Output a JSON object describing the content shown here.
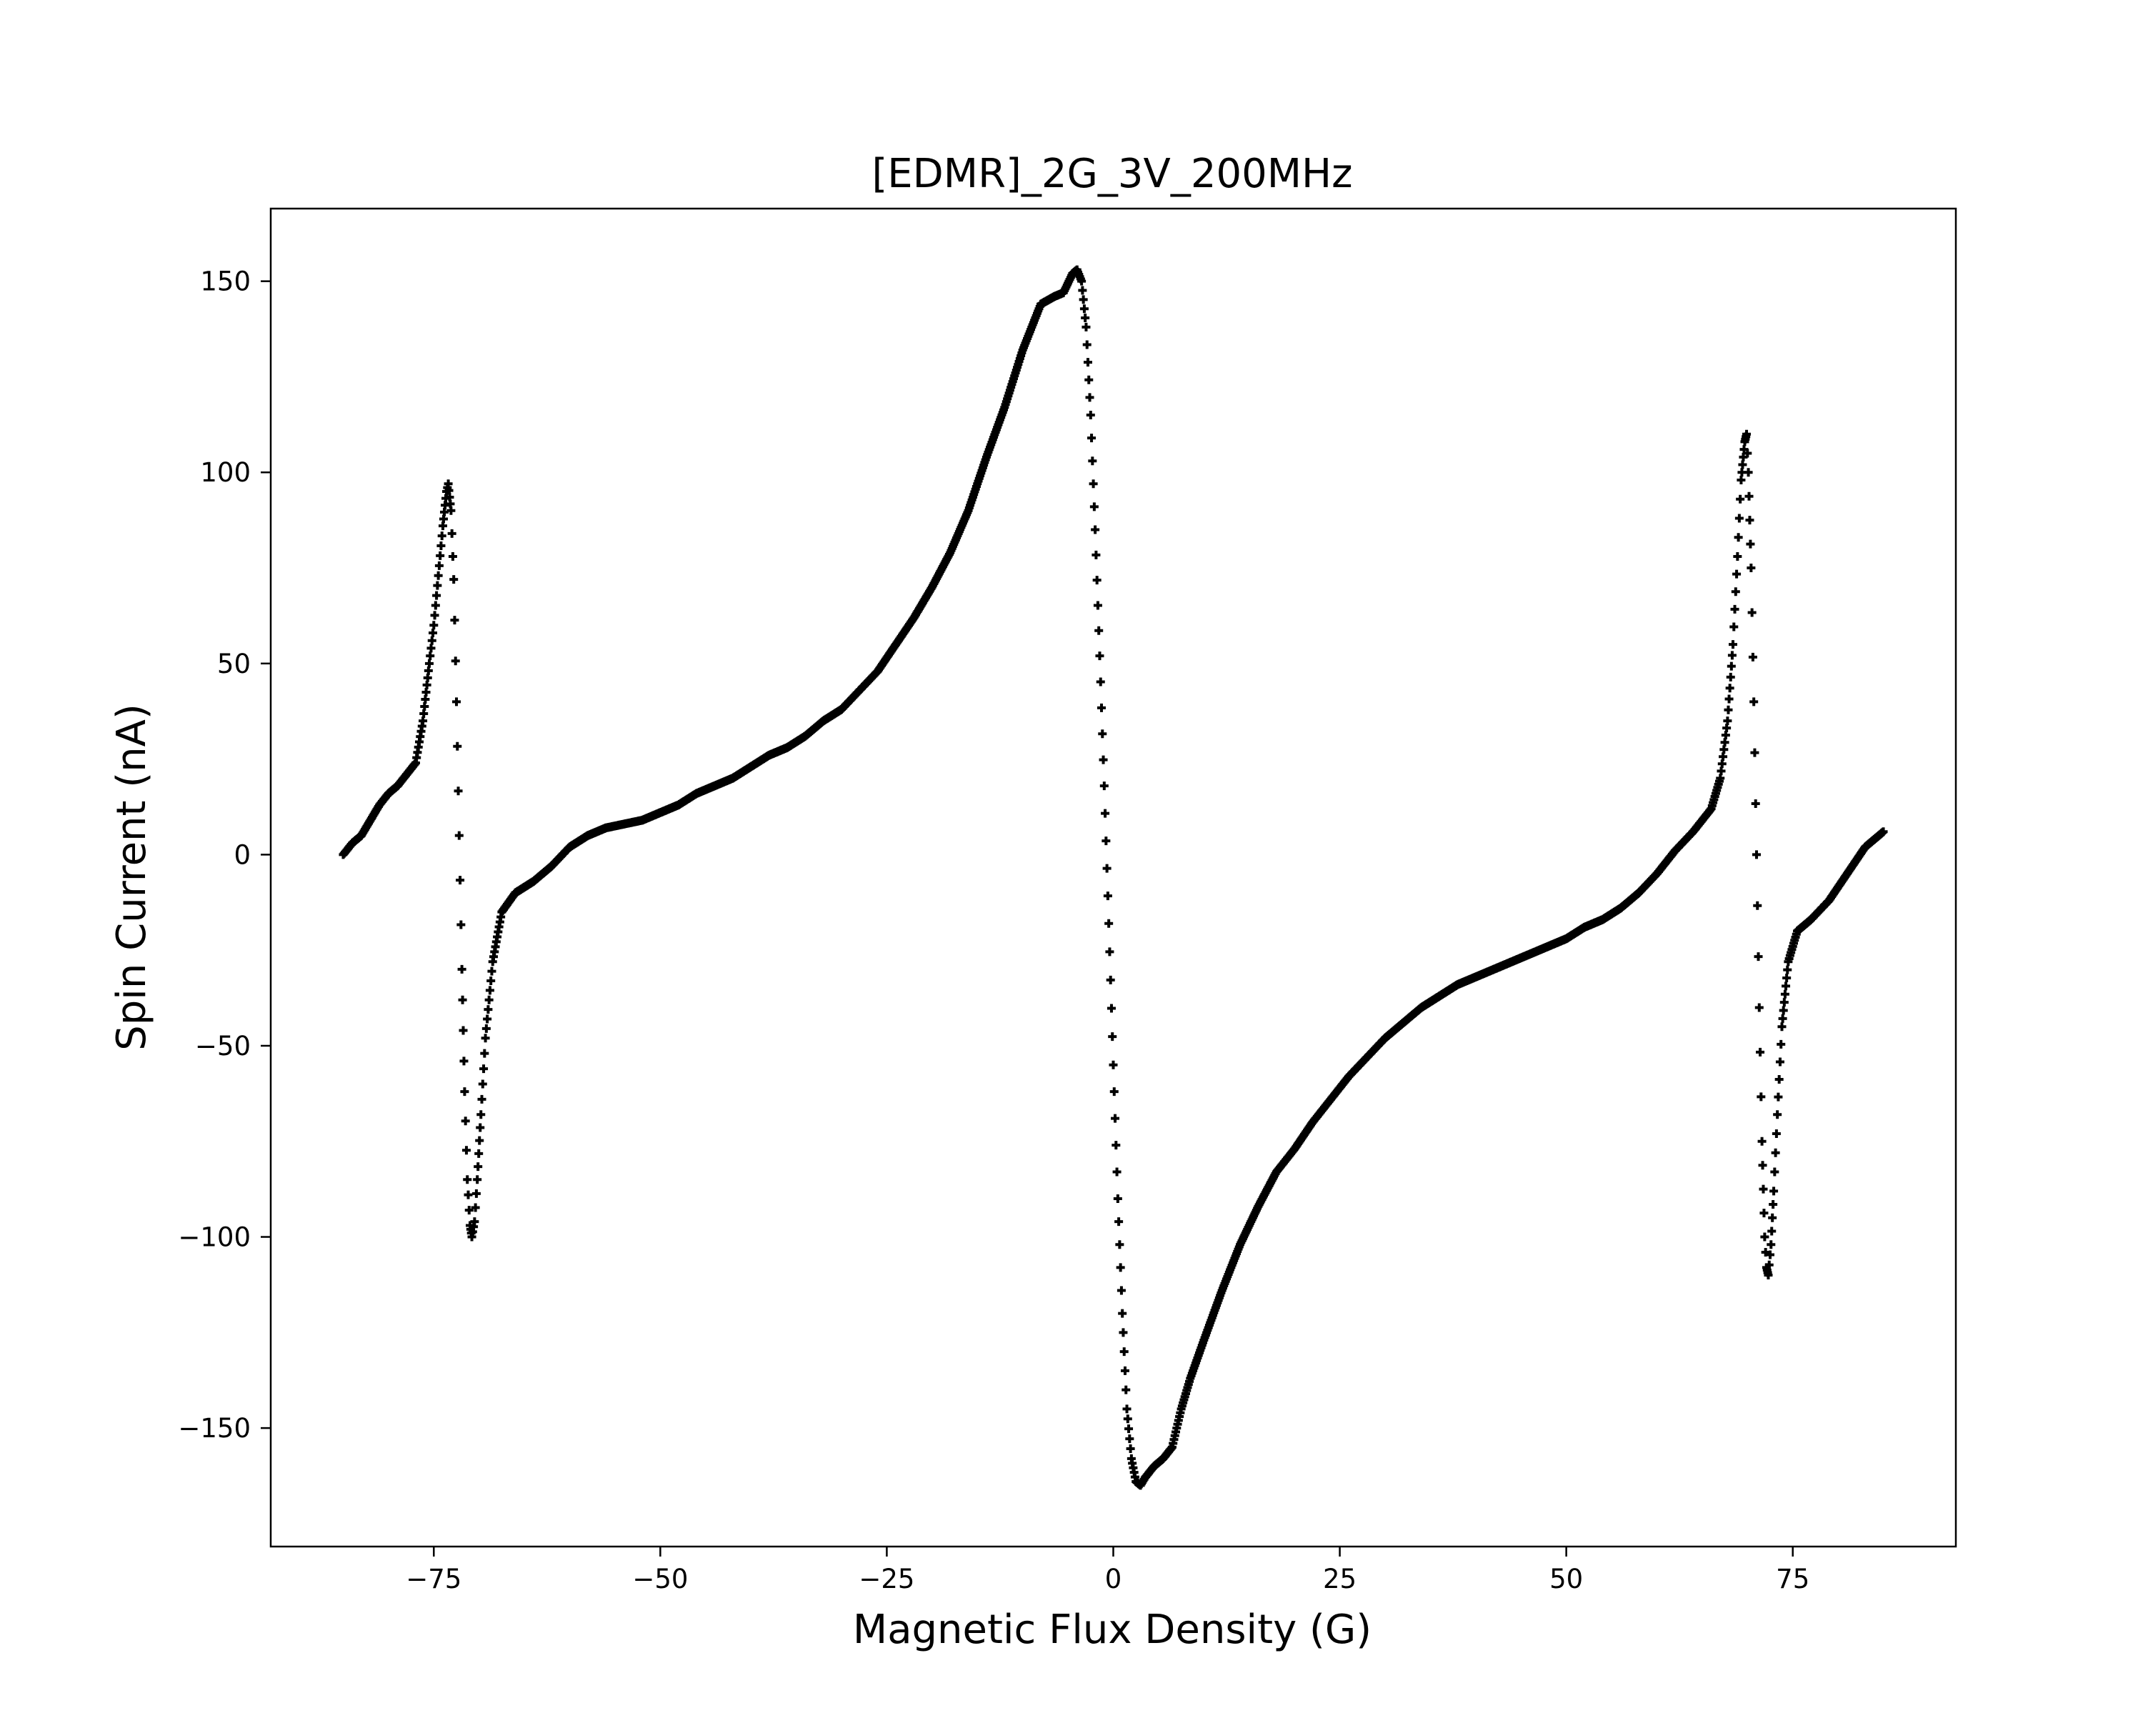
{
  "chart_data": {
    "type": "scatter",
    "title": "[EDMR]_2G_3V_200MHz",
    "xlabel": "Magnetic Flux Density (G)",
    "ylabel": "Spin Current (nA)",
    "xlim": [
      -93,
      93
    ],
    "ylim": [
      -181,
      169
    ],
    "xticks": [
      -75,
      -50,
      -25,
      0,
      25,
      50,
      75
    ],
    "yticks": [
      -150,
      -100,
      -50,
      0,
      50,
      100,
      150
    ],
    "xtick_labels": [
      "−75",
      "−50",
      "−25",
      "0",
      "25",
      "50",
      "75"
    ],
    "ytick_labels": [
      "−150",
      "−100",
      "−50",
      "0",
      "50",
      "100",
      "150"
    ],
    "grid": false,
    "marker": "plus",
    "marker_color": "#000000",
    "series": [
      {
        "x_range": [
          -85,
          85
        ],
        "points": [
          [
            -85,
            0
          ],
          [
            -84,
            3
          ],
          [
            -83,
            5
          ],
          [
            -82,
            9
          ],
          [
            -81,
            13
          ],
          [
            -80,
            16
          ],
          [
            -79,
            18
          ],
          [
            -78,
            21
          ],
          [
            -77,
            24
          ],
          [
            -76.2,
            35
          ],
          [
            -75.5,
            50
          ],
          [
            -75,
            60
          ],
          [
            -74.5,
            73
          ],
          [
            -74,
            86
          ],
          [
            -73.6,
            95
          ],
          [
            -73.4,
            97
          ],
          [
            -73.1,
            90
          ],
          [
            -72.8,
            72
          ],
          [
            -72.5,
            40
          ],
          [
            -72.2,
            5
          ],
          [
            -71.9,
            -30
          ],
          [
            -71.6,
            -62
          ],
          [
            -71.3,
            -85
          ],
          [
            -71,
            -97
          ],
          [
            -70.8,
            -100
          ],
          [
            -70.5,
            -96
          ],
          [
            -70.2,
            -85
          ],
          [
            -69.8,
            -68
          ],
          [
            -69.3,
            -48
          ],
          [
            -68.5,
            -28
          ],
          [
            -67.5,
            -15
          ],
          [
            -66,
            -10
          ],
          [
            -64,
            -7
          ],
          [
            -62,
            -3
          ],
          [
            -60,
            2
          ],
          [
            -58,
            5
          ],
          [
            -56,
            7
          ],
          [
            -54,
            8
          ],
          [
            -52,
            9
          ],
          [
            -50,
            11
          ],
          [
            -48,
            13
          ],
          [
            -46,
            16
          ],
          [
            -44,
            18
          ],
          [
            -42,
            20
          ],
          [
            -40,
            23
          ],
          [
            -38,
            26
          ],
          [
            -36,
            28
          ],
          [
            -34,
            31
          ],
          [
            -32,
            35
          ],
          [
            -30,
            38
          ],
          [
            -28,
            43
          ],
          [
            -26,
            48
          ],
          [
            -24,
            55
          ],
          [
            -22,
            62
          ],
          [
            -20,
            70
          ],
          [
            -18,
            79
          ],
          [
            -16,
            90
          ],
          [
            -14,
            104
          ],
          [
            -12,
            117
          ],
          [
            -10,
            132
          ],
          [
            -8,
            144
          ],
          [
            -6.5,
            146
          ],
          [
            -5.5,
            147
          ],
          [
            -4.5,
            152
          ],
          [
            -4,
            153
          ],
          [
            -3.5,
            150
          ],
          [
            -3,
            138
          ],
          [
            -2.5,
            115
          ],
          [
            -2,
            85
          ],
          [
            -1.5,
            52
          ],
          [
            -1,
            18
          ],
          [
            -0.5,
            -18
          ],
          [
            0,
            -55
          ],
          [
            0.5,
            -90
          ],
          [
            1,
            -120
          ],
          [
            1.5,
            -145
          ],
          [
            2,
            -158
          ],
          [
            2.5,
            -164
          ],
          [
            3,
            -165
          ],
          [
            3.5,
            -163
          ],
          [
            4.5,
            -160
          ],
          [
            5.5,
            -158
          ],
          [
            6.5,
            -155
          ],
          [
            7.5,
            -145
          ],
          [
            8.5,
            -137
          ],
          [
            10,
            -127
          ],
          [
            12,
            -114
          ],
          [
            14,
            -102
          ],
          [
            16,
            -92
          ],
          [
            18,
            -83
          ],
          [
            20,
            -77
          ],
          [
            22,
            -70
          ],
          [
            24,
            -64
          ],
          [
            26,
            -58
          ],
          [
            28,
            -53
          ],
          [
            30,
            -48
          ],
          [
            32,
            -44
          ],
          [
            34,
            -40
          ],
          [
            36,
            -37
          ],
          [
            38,
            -34
          ],
          [
            40,
            -32
          ],
          [
            42,
            -30
          ],
          [
            44,
            -28
          ],
          [
            46,
            -26
          ],
          [
            48,
            -24
          ],
          [
            50,
            -22
          ],
          [
            52,
            -19
          ],
          [
            54,
            -17
          ],
          [
            56,
            -14
          ],
          [
            58,
            -10
          ],
          [
            60,
            -5
          ],
          [
            62,
            1
          ],
          [
            64,
            6
          ],
          [
            66,
            12
          ],
          [
            67,
            20
          ],
          [
            67.8,
            35
          ],
          [
            68.4,
            55
          ],
          [
            68.9,
            78
          ],
          [
            69.3,
            98
          ],
          [
            69.7,
            108
          ],
          [
            69.9,
            110
          ],
          [
            70.1,
            100
          ],
          [
            70.4,
            75
          ],
          [
            70.7,
            40
          ],
          [
            71,
            0
          ],
          [
            71.3,
            -40
          ],
          [
            71.6,
            -75
          ],
          [
            71.9,
            -100
          ],
          [
            72.1,
            -108
          ],
          [
            72.3,
            -110
          ],
          [
            72.6,
            -102
          ],
          [
            72.9,
            -88
          ],
          [
            73.3,
            -68
          ],
          [
            73.8,
            -45
          ],
          [
            74.5,
            -28
          ],
          [
            75.5,
            -20
          ],
          [
            77,
            -17
          ],
          [
            79,
            -12
          ],
          [
            81,
            -5
          ],
          [
            83,
            2
          ],
          [
            85,
            6
          ]
        ]
      }
    ]
  }
}
